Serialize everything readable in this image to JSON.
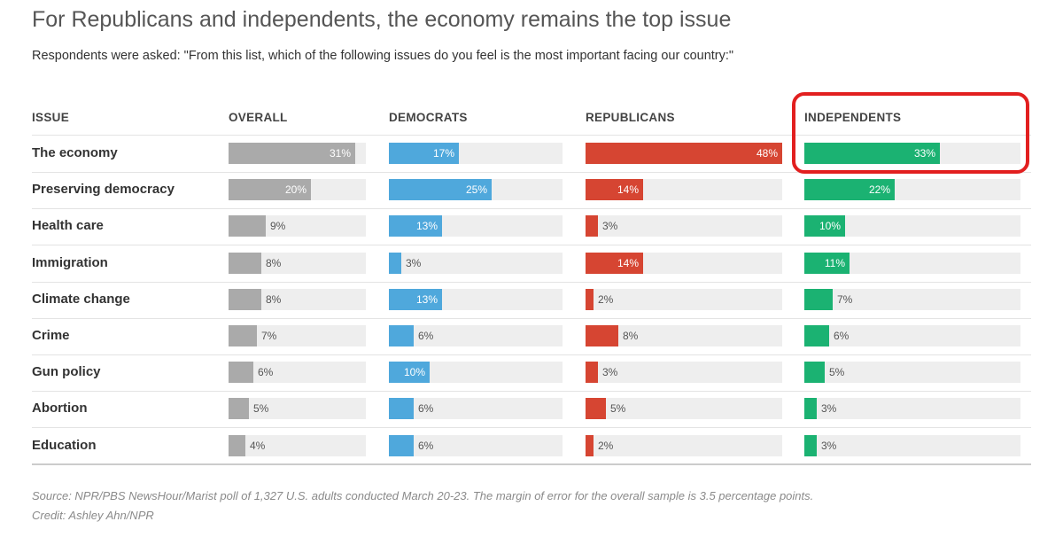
{
  "header": {
    "title": "For Republicans and independents, the economy remains the top issue",
    "subtitle": "Respondents were asked: \"From this list, which of the following issues do you feel is the most important facing our country:\""
  },
  "footer": {
    "source": "Source: NPR/PBS NewsHour/Marist poll of 1,327 U.S. adults conducted March 20-23. The margin of error for the overall sample is 3.5 percentage points.",
    "credit": "Credit: Ashley Ahn/NPR"
  },
  "colors": {
    "overall": "#aaaaaa",
    "democrats": "#4fa8dc",
    "republicans": "#d64532",
    "independents": "#1bb272",
    "highlight": "#e21f1f"
  },
  "chart_data": {
    "type": "bar",
    "title": "For Republicans and independents, the economy remains the top issue",
    "issue_header": "ISSUE",
    "unit": "%",
    "xlim": [
      0,
      50
    ],
    "highlight": {
      "series": "INDEPENDENTS",
      "category": "The economy"
    },
    "categories": [
      "The economy",
      "Preserving democracy",
      "Health care",
      "Immigration",
      "Climate change",
      "Crime",
      "Gun policy",
      "Abortion",
      "Education"
    ],
    "series": [
      {
        "key": "overall",
        "name": "OVERALL",
        "values": [
          31,
          20,
          9,
          8,
          8,
          7,
          6,
          5,
          4
        ]
      },
      {
        "key": "democrats",
        "name": "DEMOCRATS",
        "values": [
          17,
          25,
          13,
          3,
          13,
          6,
          10,
          6,
          6
        ]
      },
      {
        "key": "republicans",
        "name": "REPUBLICANS",
        "values": [
          48,
          14,
          3,
          14,
          2,
          8,
          3,
          5,
          2
        ]
      },
      {
        "key": "independents",
        "name": "INDEPENDENTS",
        "values": [
          33,
          22,
          10,
          11,
          7,
          6,
          5,
          3,
          3
        ]
      }
    ]
  }
}
